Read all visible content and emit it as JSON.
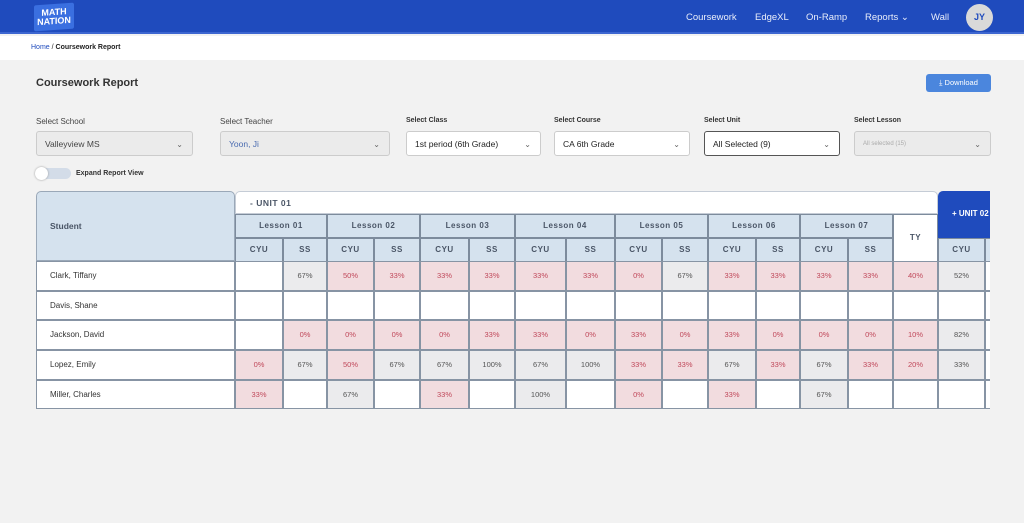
{
  "header": {
    "logo": "MATH NATION",
    "nav": [
      "Coursework",
      "EdgeXL",
      "On-Ramp",
      "Reports",
      "Wall"
    ],
    "avatar": "JY"
  },
  "breadcrumb": {
    "home": "Home",
    "current": "Coursework Report"
  },
  "page": {
    "title": "Coursework Report",
    "download": "Download"
  },
  "filters": [
    {
      "label": "Select School",
      "value": "Valleyview MS",
      "disabled": true
    },
    {
      "label": "Select Teacher",
      "value": "Yoon, Ji",
      "disabled": true
    },
    {
      "label": "Select Class",
      "value": "1st period (6th Grade)",
      "disabled": false
    },
    {
      "label": "Select Course",
      "value": "CA 6th Grade",
      "disabled": false
    },
    {
      "label": "Select Unit",
      "value": "All Selected (9)",
      "disabled": false
    },
    {
      "label": "Select Lesson",
      "value": "All selected (15)",
      "disabled": true
    }
  ],
  "toggle": {
    "label": "Expand Report View",
    "on": false
  },
  "table": {
    "student_header": "Student",
    "unit": "- UNIT 01",
    "next_unit": "+ UNIT 02",
    "lessons": [
      "Lesson 01",
      "Lesson 02",
      "Lesson 03",
      "Lesson 04",
      "Lesson 05",
      "Lesson 06",
      "Lesson 07"
    ],
    "sub": [
      "CYU",
      "SS"
    ],
    "ty": "TY",
    "next_sub": "CYU",
    "colors": {
      "low": "#f2dcdf",
      "ok": "#ebebed"
    },
    "rows": [
      {
        "name": "Clark, Tiffany",
        "cells": [
          "",
          "67%",
          "50%",
          "33%",
          "33%",
          "33%",
          "33%",
          "33%",
          "0%",
          "67%",
          "33%",
          "33%",
          "33%",
          "33%",
          "40%",
          "52%"
        ],
        "types": [
          "",
          "g",
          "r",
          "r",
          "r",
          "r",
          "r",
          "r",
          "r",
          "g",
          "r",
          "r",
          "r",
          "r",
          "r",
          "g"
        ]
      },
      {
        "name": "Davis, Shane",
        "cells": [
          "",
          "",
          "",
          "",
          "",
          "",
          "",
          "",
          "",
          "",
          "",
          "",
          "",
          "",
          "",
          ""
        ],
        "types": [
          "",
          "",
          "",
          "",
          "",
          "",
          "",
          "",
          "",
          "",
          "",
          "",
          "",
          "",
          "",
          ""
        ]
      },
      {
        "name": "Jackson, David",
        "cells": [
          "",
          "0%",
          "0%",
          "0%",
          "0%",
          "33%",
          "33%",
          "0%",
          "33%",
          "0%",
          "33%",
          "0%",
          "0%",
          "0%",
          "10%",
          "82%"
        ],
        "types": [
          "",
          "r",
          "r",
          "r",
          "r",
          "r",
          "r",
          "r",
          "r",
          "r",
          "r",
          "r",
          "r",
          "r",
          "r",
          "g"
        ]
      },
      {
        "name": "Lopez, Emily",
        "cells": [
          "0%",
          "67%",
          "50%",
          "67%",
          "67%",
          "100%",
          "67%",
          "100%",
          "33%",
          "33%",
          "67%",
          "33%",
          "67%",
          "33%",
          "20%",
          "33%"
        ],
        "types": [
          "r",
          "g",
          "r",
          "g",
          "g",
          "g",
          "g",
          "g",
          "r",
          "r",
          "g",
          "r",
          "g",
          "r",
          "r",
          "g"
        ]
      },
      {
        "name": "Miller, Charles",
        "cells": [
          "33%",
          "",
          "67%",
          "",
          "33%",
          "",
          "100%",
          "",
          "0%",
          "",
          "33%",
          "",
          "67%",
          "",
          "",
          ""
        ],
        "types": [
          "r",
          "",
          "g",
          "",
          "r",
          "",
          "g",
          "",
          "r",
          "",
          "r",
          "",
          "g",
          "",
          "",
          ""
        ]
      }
    ]
  }
}
